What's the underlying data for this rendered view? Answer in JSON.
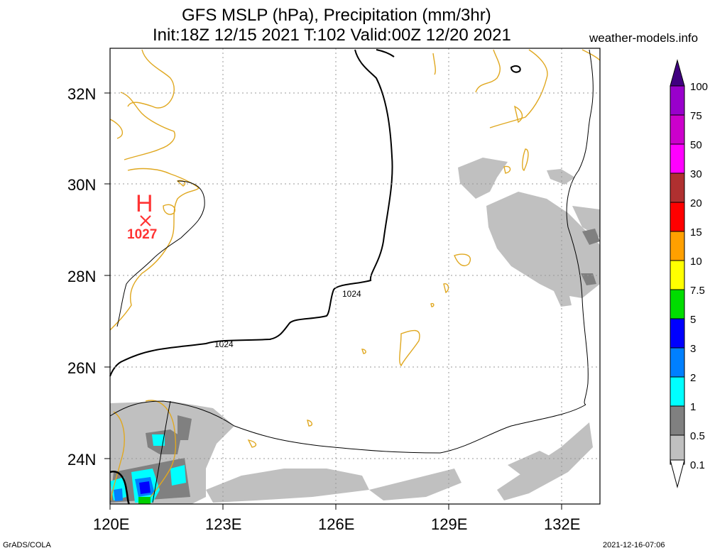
{
  "header": {
    "title_line1": "GFS MSLP (hPa), Precipitation (mm/3hr)",
    "title_line2": "Init:18Z 12/15 2021 T:102 Valid:00Z 12/20 2021",
    "site": "weather-models.info"
  },
  "footer": {
    "left": "GrADS/COLA",
    "right": "2021-12-16-07:06"
  },
  "map": {
    "lat_labels": [
      "32N",
      "30N",
      "28N",
      "26N",
      "24N"
    ],
    "lon_labels": [
      "120E",
      "123E",
      "126E",
      "129E",
      "132E"
    ],
    "lon_range": [
      120,
      133
    ],
    "lat_range": [
      23,
      33
    ],
    "high_center": {
      "symbol": "H",
      "pressure_label": "1027",
      "lon": 121,
      "lat": 29.3,
      "color": "#ff3333"
    },
    "isobar_labels": [
      "1024",
      "1024"
    ],
    "coast_color": "#e0a820",
    "precip_colors": {
      "0.1-0.5": "#c0c0c0",
      "0.5-1": "#808080",
      "1-2": "#00ffff",
      "2-3": "#0080ff",
      "3-5": "#0000ff",
      "5-7.5": "#00d000"
    }
  },
  "colorbar": {
    "levels": [
      "100",
      "75",
      "50",
      "30",
      "20",
      "15",
      "10",
      "7.5",
      "5",
      "3",
      "2",
      "1",
      "0.5",
      "0.1"
    ],
    "colors": [
      "#9900cc",
      "#cc00cc",
      "#ff00ff",
      "#b03030",
      "#ff0000",
      "#ffa000",
      "#ffff00",
      "#00dd00",
      "#0000ff",
      "#0080ff",
      "#00ffff",
      "#808080",
      "#c0c0c0"
    ],
    "top_color": "#400080"
  }
}
